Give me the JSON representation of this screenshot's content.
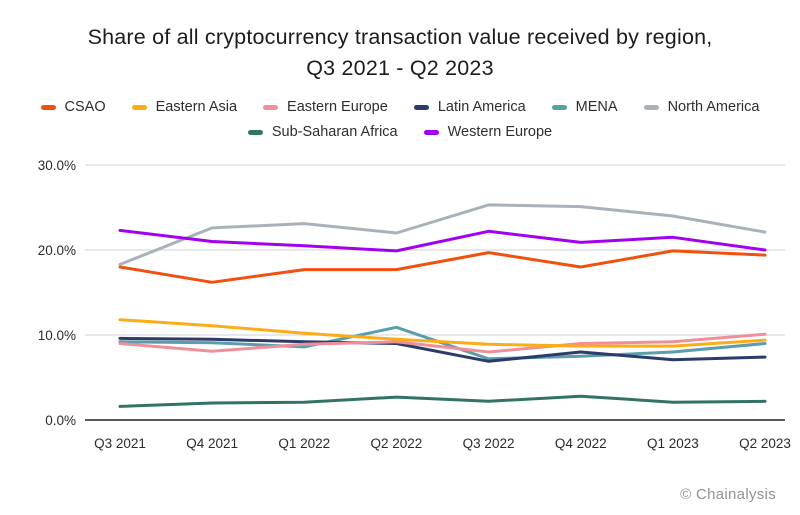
{
  "title": {
    "line1": "Share of all cryptocurrency transaction value received by region,",
    "line2": "Q3 2021 - Q2 2023"
  },
  "footer": {
    "text": "© Chainalysis"
  },
  "chart_data": {
    "type": "line",
    "title": "Share of all cryptocurrency transaction value received by region, Q3 2021 - Q2 2023",
    "categories": [
      "Q3 2021",
      "Q4 2021",
      "Q1 2022",
      "Q2 2022",
      "Q3 2022",
      "Q4 2022",
      "Q1 2023",
      "Q2 2023"
    ],
    "series": [
      {
        "name": "CSAO",
        "color": "#F2500F",
        "values": [
          18.0,
          16.2,
          17.7,
          17.7,
          19.7,
          18.0,
          19.9,
          19.4
        ]
      },
      {
        "name": "Eastern Asia",
        "color": "#FBAD18",
        "values": [
          11.8,
          11.1,
          10.2,
          9.5,
          8.9,
          8.7,
          8.7,
          9.4
        ]
      },
      {
        "name": "Eastern Europe",
        "color": "#EF8F9C",
        "values": [
          9.0,
          8.1,
          8.9,
          9.2,
          8.0,
          9.0,
          9.2,
          10.1
        ]
      },
      {
        "name": "Latin America",
        "color": "#2B3C6B",
        "values": [
          9.6,
          9.5,
          9.2,
          9.0,
          6.9,
          8.0,
          7.1,
          7.4
        ]
      },
      {
        "name": "MENA",
        "color": "#5B9DAB",
        "values": [
          9.2,
          9.1,
          8.6,
          10.9,
          7.2,
          7.5,
          8.0,
          9.0
        ]
      },
      {
        "name": "North America",
        "color": "#A9B2BA",
        "values": [
          18.3,
          22.6,
          23.1,
          22.0,
          25.3,
          25.1,
          24.0,
          22.1
        ]
      },
      {
        "name": "Sub-Saharan Africa",
        "color": "#337366",
        "values": [
          1.6,
          2.0,
          2.1,
          2.7,
          2.2,
          2.8,
          2.1,
          2.2
        ]
      },
      {
        "name": "Western Europe",
        "color": "#A100F1",
        "values": [
          22.3,
          21.0,
          20.5,
          19.9,
          22.2,
          20.9,
          21.5,
          20.0
        ]
      }
    ],
    "xlabel": "",
    "ylabel": "",
    "ylim": [
      0,
      30
    ],
    "yticks": [
      0,
      10,
      20,
      30
    ],
    "ytick_labels": [
      "0.0%",
      "10.0%",
      "20.0%",
      "30.0%"
    ],
    "grid": true,
    "legend_position": "top"
  }
}
